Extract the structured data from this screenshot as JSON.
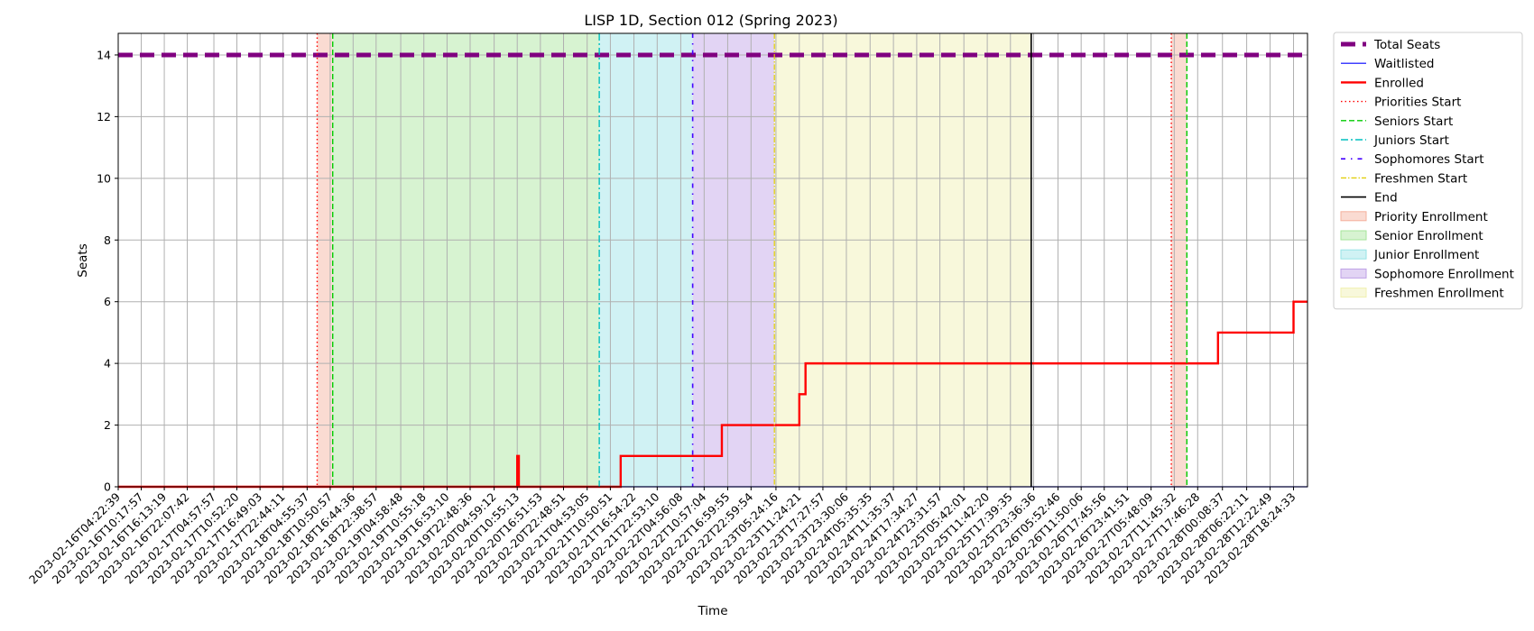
{
  "chart_data": {
    "type": "line",
    "title": "LISP 1D, Section 012 (Spring 2023)",
    "xlabel": "Time",
    "ylabel": "Seats",
    "ylim": [
      0,
      14.7
    ],
    "y_ticks": [
      0,
      2,
      4,
      6,
      8,
      10,
      12,
      14
    ],
    "grid": true,
    "legend_position": "outside-right",
    "x_ticks": [
      "2023-02-16T04:22:39",
      "2023-02-16T10:17:57",
      "2023-02-16T16:13:19",
      "2023-02-16T22:07:42",
      "2023-02-17T04:57:57",
      "2023-02-17T10:52:20",
      "2023-02-17T16:49:03",
      "2023-02-17T22:44:11",
      "2023-02-18T04:55:37",
      "2023-02-18T10:50:57",
      "2023-02-18T16:44:36",
      "2023-02-18T22:38:57",
      "2023-02-19T04:58:48",
      "2023-02-19T10:55:18",
      "2023-02-19T16:53:10",
      "2023-02-19T22:48:36",
      "2023-02-20T04:59:12",
      "2023-02-20T10:55:13",
      "2023-02-20T16:51:53",
      "2023-02-20T22:48:51",
      "2023-02-21T04:53:05",
      "2023-02-21T10:50:51",
      "2023-02-21T16:54:22",
      "2023-02-21T22:53:10",
      "2023-02-22T04:56:08",
      "2023-02-22T10:57:04",
      "2023-02-22T16:59:55",
      "2023-02-22T22:59:54",
      "2023-02-23T05:24:16",
      "2023-02-23T11:24:21",
      "2023-02-23T17:27:57",
      "2023-02-23T23:30:06",
      "2023-02-24T05:35:35",
      "2023-02-24T11:35:37",
      "2023-02-24T17:34:27",
      "2023-02-24T23:31:57",
      "2023-02-25T05:42:01",
      "2023-02-25T11:42:20",
      "2023-02-25T17:39:35",
      "2023-02-25T23:36:36",
      "2023-02-26T05:52:46",
      "2023-02-26T11:50:06",
      "2023-02-26T17:45:56",
      "2023-02-26T23:41:51",
      "2023-02-27T05:48:09",
      "2023-02-27T11:45:32",
      "2023-02-27T17:46:28",
      "2023-02-28T00:08:37",
      "2023-02-28T06:22:11",
      "2023-02-28T12:22:49",
      "2023-02-28T18:24:33"
    ],
    "x_range": [
      "2023-02-16T04:22:39",
      "2023-02-28T22:00:00"
    ],
    "series": [
      {
        "name": "Total Seats",
        "color": "#800080",
        "style": "dashed-thick",
        "points": [
          [
            "2023-02-16T04:22:39",
            14
          ],
          [
            "2023-02-28T22:00:00",
            14
          ]
        ]
      },
      {
        "name": "Waitlisted",
        "color": "#0000ff",
        "style": "solid-thin",
        "points": [
          [
            "2023-02-16T04:22:39",
            0
          ],
          [
            "2023-02-28T22:00:00",
            0
          ]
        ]
      },
      {
        "name": "Enrolled",
        "color": "#ff0000",
        "style": "solid-thick",
        "points": [
          [
            "2023-02-16T04:22:39",
            0
          ],
          [
            "2023-02-20T10:55:13",
            0
          ],
          [
            "2023-02-20T10:55:13",
            1
          ],
          [
            "2023-02-20T11:20:00",
            1
          ],
          [
            "2023-02-20T11:20:00",
            0
          ],
          [
            "2023-02-21T13:30:00",
            0
          ],
          [
            "2023-02-21T13:30:00",
            1
          ],
          [
            "2023-02-22T15:30:00",
            1
          ],
          [
            "2023-02-22T15:30:00",
            2
          ],
          [
            "2023-02-23T11:24:21",
            2
          ],
          [
            "2023-02-23T11:24:21",
            3
          ],
          [
            "2023-02-23T13:00:00",
            3
          ],
          [
            "2023-02-23T13:00:00",
            4
          ],
          [
            "2023-02-27T23:00:00",
            4
          ],
          [
            "2023-02-27T23:00:00",
            5
          ],
          [
            "2023-02-28T18:24:33",
            5
          ],
          [
            "2023-02-28T18:24:33",
            6
          ],
          [
            "2023-02-28T22:00:00",
            6
          ]
        ]
      }
    ],
    "vlines": [
      {
        "name": "Priorities Start",
        "color": "#ff0000",
        "style": "dotted",
        "x": [
          "2023-02-18T07:30:00",
          "2023-02-27T11:00:00"
        ]
      },
      {
        "name": "Seniors Start",
        "color": "#00cc00",
        "style": "dashed",
        "x": [
          "2023-02-18T11:30:00",
          "2023-02-27T15:00:00"
        ]
      },
      {
        "name": "Juniors Start",
        "color": "#00bfbf",
        "style": "dashdot",
        "x": [
          "2023-02-21T08:00:00"
        ]
      },
      {
        "name": "Sophomores Start",
        "color": "#4400ff",
        "style": "loosely-dashdot",
        "x": [
          "2023-02-22T08:00:00"
        ]
      },
      {
        "name": "Freshmen Start",
        "color": "#e0cc00",
        "style": "dashdot-fine",
        "x": [
          "2023-02-23T05:00:00"
        ]
      },
      {
        "name": "End",
        "color": "#000000",
        "style": "solid",
        "x": [
          "2023-02-25T23:00:00"
        ]
      }
    ],
    "spans": [
      {
        "name": "Priority Enrollment",
        "color": "#f4b09c",
        "ranges": [
          [
            "2023-02-18T07:30:00",
            "2023-02-18T11:30:00"
          ],
          [
            "2023-02-27T11:00:00",
            "2023-02-27T15:00:00"
          ]
        ]
      },
      {
        "name": "Senior Enrollment",
        "color": "#a6e59a",
        "ranges": [
          [
            "2023-02-18T11:30:00",
            "2023-02-21T08:00:00"
          ]
        ]
      },
      {
        "name": "Junior Enrollment",
        "color": "#96e3e6",
        "ranges": [
          [
            "2023-02-21T08:00:00",
            "2023-02-22T08:00:00"
          ]
        ]
      },
      {
        "name": "Sophomore Enrollment",
        "color": "#bfa0e6",
        "ranges": [
          [
            "2023-02-22T08:00:00",
            "2023-02-23T05:00:00"
          ]
        ]
      },
      {
        "name": "Freshmen Enrollment",
        "color": "#f0f0b0",
        "ranges": [
          [
            "2023-02-23T05:00:00",
            "2023-02-25T23:00:00"
          ]
        ]
      }
    ],
    "legend": [
      "Total Seats",
      "Waitlisted",
      "Enrolled",
      "Priorities Start",
      "Seniors Start",
      "Juniors Start",
      "Sophomores Start",
      "Freshmen Start",
      "End",
      "Priority Enrollment",
      "Senior Enrollment",
      "Junior Enrollment",
      "Sophomore Enrollment",
      "Freshmen Enrollment"
    ]
  }
}
